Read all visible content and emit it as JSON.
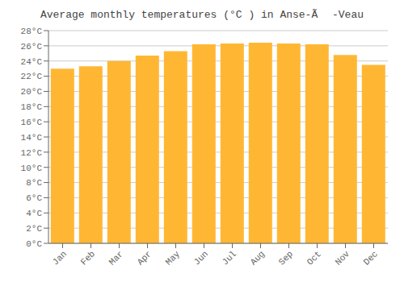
{
  "chart_data": {
    "type": "bar",
    "title": "Average monthly temperatures (°C ) in Anse-Ã -Veau",
    "categories": [
      "Jan",
      "Feb",
      "Mar",
      "Apr",
      "May",
      "Jun",
      "Jul",
      "Aug",
      "Sep",
      "Oct",
      "Nov",
      "Dec"
    ],
    "values": [
      23.0,
      23.3,
      24.0,
      24.7,
      25.3,
      26.2,
      26.3,
      26.4,
      26.3,
      26.2,
      24.8,
      23.5
    ],
    "color": "#FFB733",
    "ylim": [
      0,
      28
    ],
    "yticks": [
      {
        "value": 0,
        "label": "0°C"
      },
      {
        "value": 2,
        "label": "2°C"
      },
      {
        "value": 4,
        "label": "4°C"
      },
      {
        "value": 6,
        "label": "6°C"
      },
      {
        "value": 8,
        "label": "8°C"
      },
      {
        "value": 10,
        "label": "10°C"
      },
      {
        "value": 12,
        "label": "12°C"
      },
      {
        "value": 14,
        "label": "14°C"
      },
      {
        "value": 16,
        "label": "16°C"
      },
      {
        "value": 18,
        "label": "18°C"
      },
      {
        "value": 20,
        "label": "20°C"
      },
      {
        "value": 22,
        "label": "22°C"
      },
      {
        "value": 24,
        "label": "24°C"
      },
      {
        "value": 26,
        "label": "26°C"
      },
      {
        "value": 28,
        "label": "28°C"
      }
    ],
    "grid": true
  }
}
